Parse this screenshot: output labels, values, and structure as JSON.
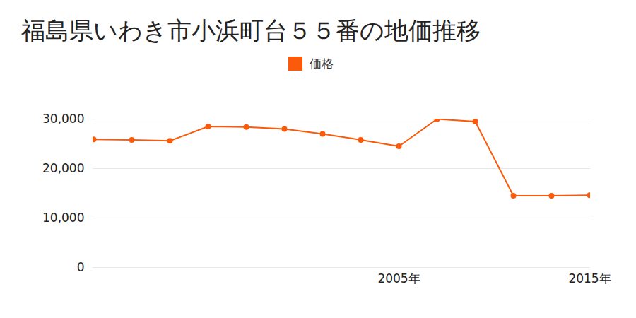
{
  "chart_data": {
    "type": "line",
    "title": "福島県いわき市小浜町台５５番の地価推移",
    "categories": [
      null,
      null,
      null,
      null,
      null,
      null,
      null,
      null,
      "2005年",
      null,
      null,
      null,
      null,
      "2015年"
    ],
    "series": [
      {
        "name": "価格",
        "color": "#fa5a0a",
        "marker": "circle",
        "values": [
          25900,
          25800,
          25600,
          28500,
          28400,
          28000,
          27000,
          25800,
          24500,
          30000,
          29500,
          14500,
          14500,
          14600
        ]
      }
    ],
    "ylim": [
      0,
      30000
    ],
    "yticks": [
      0,
      {
        "value": 10000,
        "label": "10,000"
      },
      {
        "value": 20000,
        "label": "20,000"
      },
      {
        "value": 30000,
        "label": "30,000"
      }
    ],
    "grid": true
  }
}
